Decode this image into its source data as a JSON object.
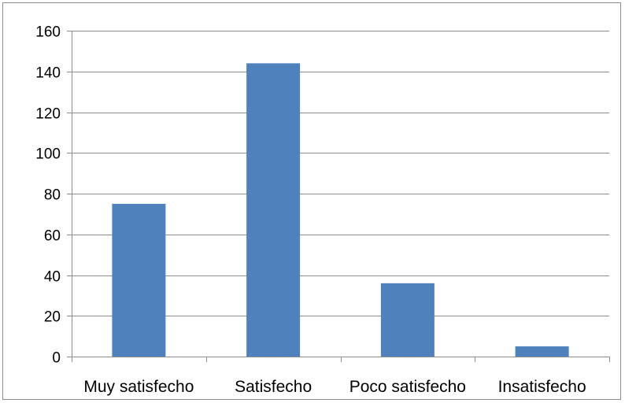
{
  "chart_data": {
    "type": "bar",
    "title": "",
    "xlabel": "",
    "ylabel": "",
    "categories": [
      "Muy satisfecho",
      "Satisfecho",
      "Poco satisfecho",
      "Insatisfecho"
    ],
    "values": [
      75,
      144,
      36,
      5
    ],
    "ylim": [
      0,
      160
    ],
    "yticks": [
      0,
      20,
      40,
      60,
      80,
      100,
      120,
      140,
      160
    ],
    "grid": true,
    "legend": "none",
    "bar_color": "#4f81bd",
    "gridline_color": "#8c8c8c"
  }
}
